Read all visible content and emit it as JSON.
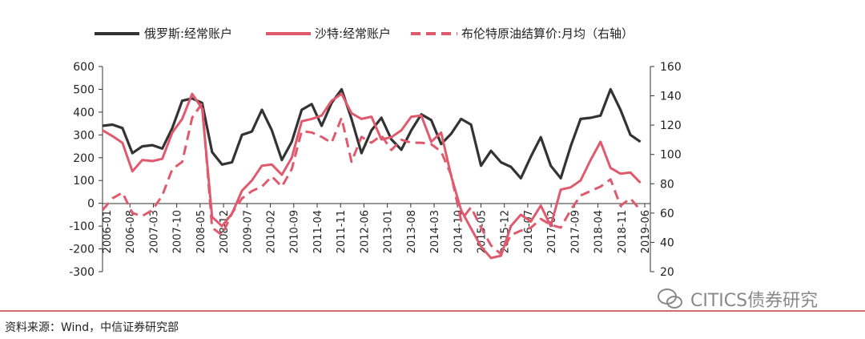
{
  "chart_data": {
    "type": "line",
    "legend": {
      "position": "top",
      "items": [
        {
          "name": "俄罗斯:经常账户",
          "color": "#333333",
          "style": "solid"
        },
        {
          "name": "沙特:经常账户",
          "color": "#e05a6e",
          "style": "solid"
        },
        {
          "name": "布伦特原油结算价:月均（右轴）",
          "color": "#e05a6e",
          "style": "dashed"
        }
      ]
    },
    "x_tick_labels": [
      "2006-01",
      "2006-08",
      "2007-03",
      "2007-10",
      "2008-05",
      "2008-12",
      "2009-07",
      "2010-02",
      "2010-09",
      "2011-04",
      "2011-11",
      "2012-06",
      "2013-01",
      "2013-08",
      "2014-03",
      "2014-10",
      "2015-05",
      "2015-12",
      "2016-07",
      "2017-02",
      "2017-09",
      "2018-04",
      "2018-11",
      "2019-06"
    ],
    "y_left": {
      "min": -300,
      "max": 600,
      "ticks": [
        600,
        500,
        400,
        300,
        200,
        100,
        0,
        -100,
        -200,
        -300
      ]
    },
    "y_right": {
      "min": 20,
      "max": 160,
      "ticks": [
        160,
        140,
        120,
        100,
        80,
        60,
        40,
        20
      ]
    },
    "grid": false,
    "series": [
      {
        "name": "俄罗斯:经常账户",
        "axis": "left",
        "x": [
          2006.0,
          2006.25,
          2006.5,
          2006.75,
          2007.0,
          2007.25,
          2007.5,
          2007.75,
          2008.0,
          2008.25,
          2008.5,
          2008.75,
          2009.0,
          2009.25,
          2009.5,
          2009.75,
          2010.0,
          2010.25,
          2010.5,
          2010.75,
          2011.0,
          2011.25,
          2011.5,
          2011.75,
          2012.0,
          2012.25,
          2012.5,
          2012.75,
          2013.0,
          2013.25,
          2013.5,
          2013.75,
          2014.0,
          2014.25,
          2014.5,
          2014.75,
          2015.0,
          2015.25,
          2015.5,
          2015.75,
          2016.0,
          2016.25,
          2016.5,
          2016.75,
          2017.0,
          2017.25,
          2017.5,
          2017.75,
          2018.0,
          2018.25,
          2018.5,
          2018.75,
          2019.0,
          2019.25,
          2019.5
        ],
        "values": [
          340,
          345,
          330,
          220,
          250,
          255,
          240,
          330,
          450,
          460,
          440,
          225,
          170,
          180,
          300,
          315,
          410,
          320,
          190,
          270,
          410,
          435,
          340,
          440,
          500,
          370,
          220,
          320,
          375,
          280,
          235,
          320,
          390,
          365,
          260,
          305,
          370,
          345,
          165,
          230,
          180,
          160,
          110,
          205,
          290,
          165,
          110,
          250,
          370,
          375,
          385,
          500,
          410,
          300,
          270
        ]
      },
      {
        "name": "沙特:经常账户",
        "axis": "left",
        "x": [
          2006.0,
          2006.25,
          2006.5,
          2006.75,
          2007.0,
          2007.25,
          2007.5,
          2007.75,
          2008.0,
          2008.25,
          2008.5,
          2008.75,
          2009.0,
          2009.25,
          2009.5,
          2009.75,
          2010.0,
          2010.25,
          2010.5,
          2010.75,
          2011.0,
          2011.25,
          2011.5,
          2011.75,
          2012.0,
          2012.25,
          2012.5,
          2012.75,
          2013.0,
          2013.25,
          2013.5,
          2013.75,
          2014.0,
          2014.25,
          2014.5,
          2014.75,
          2015.0,
          2015.25,
          2015.5,
          2015.75,
          2016.0,
          2016.25,
          2016.5,
          2016.75,
          2017.0,
          2017.25,
          2017.5,
          2017.75,
          2018.0,
          2018.25,
          2018.5,
          2018.75,
          2019.0,
          2019.25,
          2019.5
        ],
        "values": [
          320,
          295,
          265,
          140,
          190,
          185,
          195,
          310,
          370,
          480,
          415,
          -60,
          -100,
          -45,
          55,
          100,
          165,
          170,
          125,
          200,
          360,
          370,
          385,
          450,
          480,
          395,
          370,
          380,
          280,
          290,
          320,
          380,
          385,
          270,
          310,
          120,
          -30,
          -110,
          -190,
          -240,
          -230,
          -100,
          -50,
          -80,
          -10,
          -100,
          60,
          70,
          100,
          190,
          270,
          155,
          130,
          135,
          90
        ]
      },
      {
        "name": "布伦特原油结算价:月均（右轴）",
        "axis": "right",
        "x": [
          2006.0,
          2006.25,
          2006.5,
          2006.75,
          2007.0,
          2007.25,
          2007.5,
          2007.75,
          2008.0,
          2008.25,
          2008.5,
          2008.75,
          2009.0,
          2009.25,
          2009.5,
          2009.75,
          2010.0,
          2010.25,
          2010.5,
          2010.75,
          2011.0,
          2011.25,
          2011.5,
          2011.75,
          2012.0,
          2012.25,
          2012.5,
          2012.75,
          2013.0,
          2013.25,
          2013.5,
          2013.75,
          2014.0,
          2014.25,
          2014.5,
          2014.75,
          2015.0,
          2015.25,
          2015.5,
          2015.75,
          2016.0,
          2016.25,
          2016.5,
          2016.75,
          2017.0,
          2017.25,
          2017.5,
          2017.75,
          2018.0,
          2018.25,
          2018.5,
          2018.75,
          2019.0,
          2019.25,
          2019.5
        ],
        "values": [
          62,
          70,
          74,
          60,
          58,
          62,
          72,
          90,
          95,
          125,
          135,
          50,
          45,
          60,
          70,
          75,
          78,
          85,
          78,
          90,
          116,
          115,
          112,
          108,
          125,
          95,
          112,
          108,
          113,
          103,
          110,
          108,
          108,
          107,
          102,
          86,
          55,
          64,
          50,
          38,
          32,
          45,
          48,
          50,
          56,
          52,
          50,
          62,
          72,
          75,
          78,
          83,
          65,
          70,
          62
        ]
      }
    ]
  },
  "source": "资料来源：Wind，中信证券研究部",
  "watermark": "CITICS债券研究"
}
